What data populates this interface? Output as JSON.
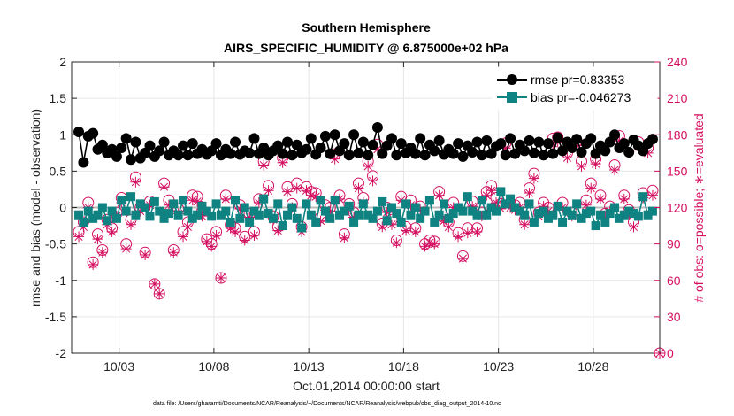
{
  "chart_data": {
    "type": "scatter",
    "title": "Southern Hemisphere",
    "subtitle": "AIRS_SPECIFIC_HUMIDITY @ 6.875000e+02 hPa",
    "xlabel": "Oct.01,2014 00:00:00 start",
    "ylabel": "rmse and bias (model - observation)",
    "ylabel_right": "# of obs: o=possible; ∗=evaluated",
    "footer": "data file: /Users/gharamti/Documents/NCAR/Reanalysis/~/Documents/NCAR/Reanalysis/webpub/obs_diag_output_2014-10.nc",
    "xlim": [
      0.5,
      31.5
    ],
    "ylim": [
      -2,
      2
    ],
    "ylim_right": [
      0,
      240
    ],
    "x_ticks": [
      3,
      8,
      13,
      18,
      23,
      28
    ],
    "x_tick_labels": [
      "10/03",
      "10/08",
      "10/13",
      "10/18",
      "10/23",
      "10/28"
    ],
    "y_ticks": [
      -2,
      -1.5,
      -1,
      -0.5,
      0,
      0.5,
      1,
      1.5,
      2
    ],
    "y_tick_labels": [
      "-2",
      "-1.5",
      "-1",
      "-0.5",
      "0",
      "0.5",
      "1",
      "1.5",
      "2"
    ],
    "y_ticks_right": [
      0,
      30,
      60,
      90,
      120,
      150,
      180,
      210,
      240
    ],
    "y_tick_labels_right": [
      "0",
      "30",
      "60",
      "90",
      "120",
      "150",
      "180",
      "210",
      "240"
    ],
    "grid": true,
    "legend_position": "top-right",
    "colors": {
      "rmse": "#000000",
      "bias": "#0f8282",
      "obs": "#d40f60",
      "zero_line": "#bbbbbb"
    },
    "series": [
      {
        "name": "rmse pr=0.83353",
        "axis": "left",
        "marker": "filled-circle",
        "x": [
          0.875,
          1.125,
          1.375,
          1.625,
          1.875,
          2.125,
          2.375,
          2.625,
          2.875,
          3.125,
          3.375,
          3.625,
          3.875,
          4.125,
          4.375,
          4.625,
          4.875,
          5.125,
          5.375,
          5.625,
          5.875,
          6.125,
          6.375,
          6.625,
          6.875,
          7.125,
          7.375,
          7.625,
          7.875,
          8.125,
          8.375,
          8.625,
          8.875,
          9.125,
          9.375,
          9.625,
          9.875,
          10.125,
          10.375,
          10.625,
          10.875,
          11.125,
          11.375,
          11.625,
          11.875,
          12.125,
          12.375,
          12.625,
          12.875,
          13.125,
          13.375,
          13.625,
          13.875,
          14.125,
          14.375,
          14.625,
          14.875,
          15.125,
          15.375,
          15.625,
          15.875,
          16.125,
          16.375,
          16.625,
          16.875,
          17.125,
          17.375,
          17.625,
          17.875,
          18.125,
          18.375,
          18.625,
          18.875,
          19.125,
          19.375,
          19.625,
          19.875,
          20.125,
          20.375,
          20.625,
          20.875,
          21.125,
          21.375,
          21.625,
          21.875,
          22.125,
          22.375,
          22.625,
          22.875,
          23.125,
          23.375,
          23.625,
          23.875,
          24.125,
          24.375,
          24.625,
          24.875,
          25.125,
          25.375,
          25.625,
          25.875,
          26.125,
          26.375,
          26.625,
          26.875,
          27.125,
          27.375,
          27.625,
          27.875,
          28.125,
          28.375,
          28.625,
          28.875,
          29.125,
          29.375,
          29.625,
          29.875,
          30.125,
          30.375,
          30.625,
          30.875,
          31.125
        ],
        "values": [
          1.04,
          0.62,
          0.98,
          1.02,
          0.8,
          0.86,
          0.75,
          0.8,
          0.7,
          0.82,
          0.95,
          0.66,
          0.9,
          0.68,
          0.75,
          0.85,
          0.7,
          0.78,
          0.9,
          0.72,
          0.78,
          0.72,
          0.85,
          0.72,
          0.88,
          0.74,
          0.8,
          0.73,
          0.78,
          0.88,
          0.72,
          0.8,
          0.74,
          0.9,
          0.73,
          0.78,
          0.75,
          0.95,
          0.74,
          0.82,
          0.72,
          0.78,
          0.85,
          0.74,
          0.9,
          0.72,
          0.86,
          0.75,
          0.8,
          0.95,
          0.73,
          0.82,
          0.98,
          0.74,
          1.0,
          0.78,
          0.88,
          0.72,
          1.0,
          0.75,
          0.9,
          0.72,
          0.86,
          1.1,
          0.74,
          0.85,
          0.95,
          0.72,
          0.88,
          0.75,
          0.82,
          0.74,
          0.95,
          0.72,
          0.86,
          0.78,
          0.92,
          0.73,
          0.8,
          0.74,
          0.88,
          0.7,
          0.85,
          0.76,
          0.9,
          0.72,
          0.92,
          0.74,
          0.84,
          0.88,
          0.72,
          0.95,
          0.74,
          0.86,
          0.78,
          0.92,
          0.75,
          0.9,
          0.72,
          0.88,
          0.74,
          0.96,
          0.78,
          0.9,
          0.82,
          0.94,
          0.76,
          0.88,
          0.95,
          0.74,
          0.85,
          0.78,
          0.9,
          1.0,
          0.82,
          0.88,
          0.76,
          0.93,
          0.85,
          0.78,
          0.88,
          0.94
        ]
      },
      {
        "name": "bias pr=-0.046273",
        "axis": "left",
        "marker": "filled-square",
        "x": [
          0.875,
          1.125,
          1.375,
          1.625,
          1.875,
          2.125,
          2.375,
          2.625,
          2.875,
          3.125,
          3.375,
          3.625,
          3.875,
          4.125,
          4.375,
          4.625,
          4.875,
          5.125,
          5.375,
          5.625,
          5.875,
          6.125,
          6.375,
          6.625,
          6.875,
          7.125,
          7.375,
          7.625,
          7.875,
          8.125,
          8.375,
          8.625,
          8.875,
          9.125,
          9.375,
          9.625,
          9.875,
          10.125,
          10.375,
          10.625,
          10.875,
          11.125,
          11.375,
          11.625,
          11.875,
          12.125,
          12.375,
          12.625,
          12.875,
          13.125,
          13.375,
          13.625,
          13.875,
          14.125,
          14.375,
          14.625,
          14.875,
          15.125,
          15.375,
          15.625,
          15.875,
          16.125,
          16.375,
          16.625,
          16.875,
          17.125,
          17.375,
          17.625,
          17.875,
          18.125,
          18.375,
          18.625,
          18.875,
          19.125,
          19.375,
          19.625,
          19.875,
          20.125,
          20.375,
          20.625,
          20.875,
          21.125,
          21.375,
          21.625,
          21.875,
          22.125,
          22.375,
          22.625,
          22.875,
          23.125,
          23.375,
          23.625,
          23.875,
          24.125,
          24.375,
          24.625,
          24.875,
          25.125,
          25.375,
          25.625,
          25.875,
          26.125,
          26.375,
          26.625,
          26.875,
          27.125,
          27.375,
          27.625,
          27.875,
          28.125,
          28.375,
          28.625,
          28.875,
          29.125,
          29.375,
          29.625,
          29.875,
          30.125,
          30.375,
          30.625,
          30.875,
          31.125
        ],
        "values": [
          -0.1,
          -0.2,
          -0.05,
          -0.15,
          -0.1,
          0.0,
          -0.18,
          -0.05,
          -0.15,
          0.1,
          -0.05,
          0.15,
          -0.1,
          0.05,
          0.0,
          -0.12,
          0.08,
          -0.05,
          -0.15,
          -0.08,
          0.05,
          -0.1,
          0.1,
          -0.05,
          -0.15,
          -0.1,
          0.02,
          -0.05,
          -0.12,
          0.05,
          -0.1,
          -0.05,
          -0.2,
          0.1,
          -0.15,
          0.0,
          -0.2,
          -0.05,
          -0.1,
          0.12,
          -0.08,
          -0.15,
          0.05,
          -0.25,
          -0.1,
          0.0,
          -0.15,
          -0.28,
          0.05,
          -0.1,
          -0.2,
          0.1,
          -0.05,
          -0.15,
          0.1,
          -0.1,
          -0.05,
          0.02,
          -0.2,
          -0.1,
          0.05,
          -0.1,
          -0.15,
          -0.05,
          0.08,
          -0.18,
          0.0,
          -0.08,
          -0.2,
          0.05,
          -0.1,
          0.0,
          -0.15,
          -0.05,
          0.1,
          -0.2,
          -0.1,
          0.05,
          -0.15,
          -0.08,
          0.0,
          -0.05,
          0.15,
          -0.05,
          -0.1,
          0.1,
          -0.1,
          0.0,
          -0.05,
          0.22,
          0.05,
          0.12,
          0.0,
          -0.05,
          -0.1,
          0.05,
          -0.2,
          -0.08,
          -0.05,
          -0.15,
          -0.1,
          0.02,
          -0.2,
          -0.05,
          -0.1,
          0.05,
          -0.15,
          -0.08,
          -0.05,
          -0.25,
          -0.1,
          -0.2,
          -0.08,
          0.0,
          -0.15,
          -0.1,
          -0.05,
          -0.08,
          -0.12,
          0.15,
          -0.1,
          -0.05
        ]
      },
      {
        "name": "# of obs possible",
        "axis": "right",
        "marker": "open-circle",
        "x": [
          0.875,
          1.125,
          1.375,
          1.625,
          1.875,
          2.125,
          2.375,
          2.625,
          2.875,
          3.125,
          3.375,
          3.625,
          3.875,
          4.125,
          4.375,
          4.625,
          4.875,
          5.125,
          5.375,
          5.625,
          5.875,
          6.125,
          6.375,
          6.625,
          6.875,
          7.125,
          7.375,
          7.625,
          7.875,
          8.125,
          8.375,
          8.625,
          8.875,
          9.125,
          9.375,
          9.625,
          9.875,
          10.125,
          10.375,
          10.625,
          10.875,
          11.125,
          11.375,
          11.625,
          11.875,
          12.125,
          12.375,
          12.625,
          12.875,
          13.125,
          13.375,
          13.625,
          13.875,
          14.125,
          14.375,
          14.625,
          14.875,
          15.125,
          15.375,
          15.625,
          15.875,
          16.125,
          16.375,
          16.625,
          16.875,
          17.125,
          17.375,
          17.625,
          17.875,
          18.125,
          18.375,
          18.625,
          18.875,
          19.125,
          19.375,
          19.625,
          19.875,
          20.125,
          20.375,
          20.625,
          20.875,
          21.125,
          21.375,
          21.625,
          21.875,
          22.125,
          22.375,
          22.625,
          22.875,
          23.125,
          23.375,
          23.625,
          23.875,
          24.125,
          24.375,
          24.625,
          24.875,
          25.125,
          25.375,
          25.625,
          25.875,
          26.125,
          26.375,
          26.625,
          26.875,
          27.125,
          27.375,
          27.625,
          27.875,
          28.125,
          28.375,
          28.625,
          28.875,
          29.125,
          29.375,
          29.625,
          29.875,
          30.125,
          30.375,
          30.625,
          30.875,
          31.125
        ],
        "values": [
          100,
          108,
          124,
          75,
          98,
          85,
          110,
          103,
          116,
          128,
          90,
          110,
          145,
          120,
          83,
          125,
          57,
          49,
          140,
          126,
          85,
          119,
          100,
          108,
          130,
          129,
          117,
          94,
          90,
          100,
          62,
          130,
          106,
          103,
          122,
          96,
          115,
          100,
          127,
          158,
          138,
          113,
          104,
          161,
          137,
          123,
          140,
          104,
          137,
          133,
          132,
          112,
          122,
          120,
          164,
          130,
          98,
          123,
          116,
          140,
          128,
          158,
          146,
          172,
          107,
          120,
          110,
          93,
          129,
          104,
          126,
          103,
          121,
          90,
          93,
          92,
          133,
          112,
          108,
          124,
          99,
          80,
          103,
          125,
          103,
          116,
          133,
          138,
          128,
          123,
          173,
          124,
          122,
          124,
          110,
          136,
          148,
          116,
          124,
          120,
          177,
          178,
          124,
          165,
          116,
          175,
          158,
          126,
          140,
          160,
          130,
          115,
          121,
          155,
          179,
          130,
          118,
          108,
          174,
          132,
          169,
          134
        ]
      },
      {
        "name": "# of obs evaluated",
        "axis": "right",
        "marker": "asterisk",
        "x": [
          0.875,
          1.125,
          1.375,
          1.625,
          1.875,
          2.125,
          2.375,
          2.625,
          2.875,
          3.125,
          3.375,
          3.625,
          3.875,
          4.125,
          4.375,
          4.625,
          4.875,
          5.125,
          5.375,
          5.625,
          5.875,
          6.125,
          6.375,
          6.625,
          6.875,
          7.125,
          7.375,
          7.625,
          7.875,
          8.125,
          8.375,
          8.625,
          8.875,
          9.125,
          9.375,
          9.625,
          9.875,
          10.125,
          10.375,
          10.625,
          10.875,
          11.125,
          11.375,
          11.625,
          11.875,
          12.125,
          12.375,
          12.625,
          12.875,
          13.125,
          13.375,
          13.625,
          13.875,
          14.125,
          14.375,
          14.625,
          14.875,
          15.125,
          15.375,
          15.625,
          15.875,
          16.125,
          16.375,
          16.625,
          16.875,
          17.125,
          17.375,
          17.625,
          17.875,
          18.125,
          18.375,
          18.625,
          18.875,
          19.125,
          19.375,
          19.625,
          19.875,
          20.125,
          20.375,
          20.625,
          20.875,
          21.125,
          21.375,
          21.625,
          21.875,
          22.125,
          22.375,
          22.625,
          22.875,
          23.125,
          23.375,
          23.625,
          23.875,
          24.125,
          24.375,
          24.625,
          24.875,
          25.125,
          25.375,
          25.625,
          25.875,
          26.125,
          26.375,
          26.625,
          26.875,
          27.125,
          27.375,
          27.625,
          27.875,
          28.125,
          28.375,
          28.625,
          28.875,
          29.125,
          29.375,
          29.625,
          29.875,
          30.125,
          30.375,
          30.625,
          30.875,
          31.125
        ],
        "values": [
          96,
          104,
          120,
          73,
          94,
          83,
          106,
          100,
          113,
          124,
          86,
          106,
          141,
          117,
          81,
          122,
          57,
          49,
          137,
          122,
          83,
          115,
          96,
          104,
          126,
          125,
          113,
          92,
          88,
          97,
          62,
          127,
          103,
          100,
          119,
          93,
          112,
          97,
          124,
          155,
          134,
          110,
          101,
          157,
          133,
          120,
          136,
          100,
          134,
          130,
          129,
          109,
          118,
          117,
          160,
          127,
          95,
          119,
          112,
          136,
          124,
          154,
          142,
          168,
          104,
          116,
          106,
          91,
          126,
          101,
          122,
          100,
          118,
          88,
          91,
          90,
          130,
          109,
          104,
          120,
          96,
          78,
          99,
          121,
          100,
          113,
          130,
          134,
          124,
          119,
          169,
          120,
          118,
          120,
          106,
          132,
          144,
          113,
          121,
          117,
          173,
          174,
          120,
          161,
          113,
          171,
          154,
          122,
          136,
          156,
          127,
          112,
          117,
          151,
          175,
          127,
          115,
          104,
          170,
          128,
          165,
          130
        ]
      }
    ],
    "extra_points": [
      {
        "series": "# of obs possible",
        "x": 31.5,
        "value": 0
      },
      {
        "series": "# of obs evaluated",
        "x": 31.5,
        "value": 0
      }
    ]
  }
}
